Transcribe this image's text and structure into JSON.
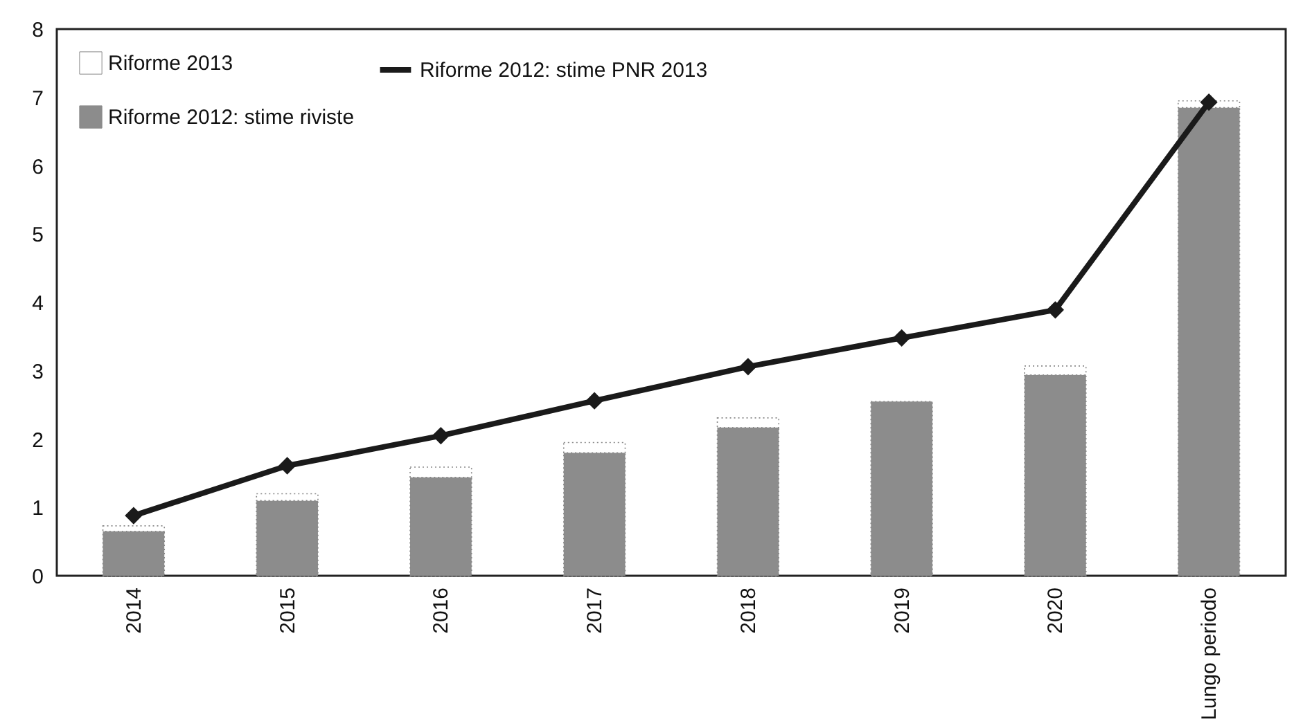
{
  "chart_data": {
    "type": "bar",
    "stacked": true,
    "categories": [
      "2014",
      "2015",
      "2016",
      "2017",
      "2018",
      "2019",
      "2020",
      "Lungo periodo"
    ],
    "series": [
      {
        "name": "Riforme 2012: stime riviste",
        "color": "#8c8c8c",
        "values": [
          0.65,
          1.1,
          1.44,
          1.8,
          2.17,
          2.55,
          2.94,
          6.85
        ]
      },
      {
        "name": "Riforme 2013",
        "color": "#ffffff",
        "values": [
          0.08,
          0.1,
          0.15,
          0.15,
          0.14,
          null,
          0.13,
          0.1
        ]
      },
      {
        "name": "Riforme 2012: stime PNR 2013",
        "type": "line",
        "color": "#1a1a1a",
        "values": [
          0.88,
          1.61,
          2.05,
          2.56,
          3.06,
          3.48,
          3.89,
          6.93
        ]
      }
    ],
    "ylim": [
      0,
      8
    ],
    "yticks": [
      0,
      1,
      2,
      3,
      4,
      5,
      6,
      7,
      8
    ],
    "grid": false,
    "legend": "top left",
    "marker": "diamond",
    "line_style": "solid"
  }
}
